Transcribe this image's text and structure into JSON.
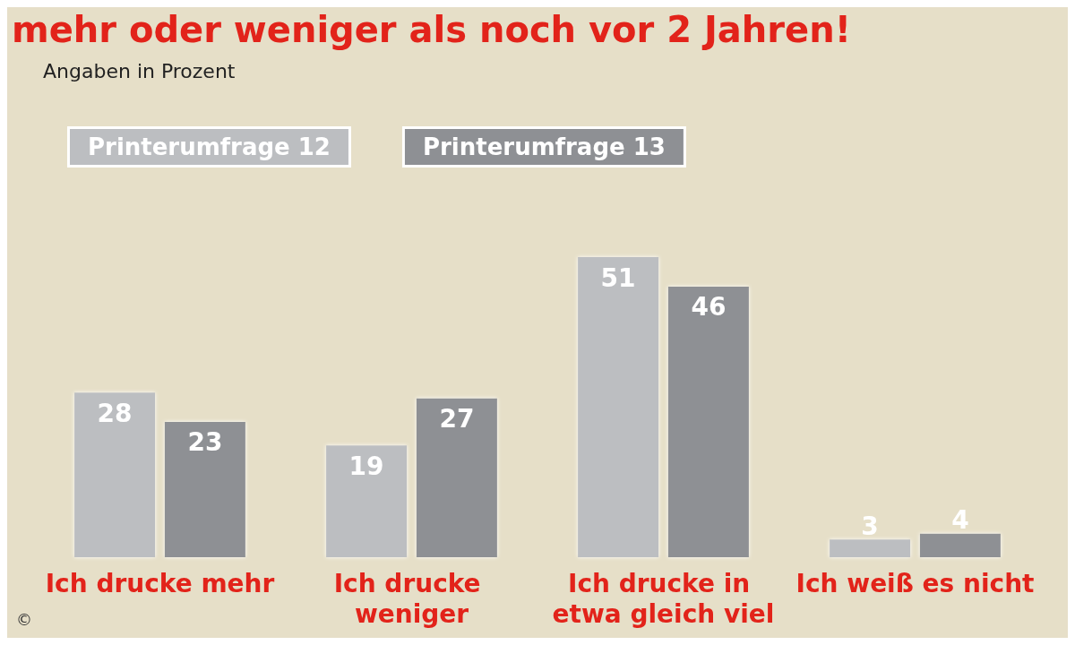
{
  "chart_data": {
    "type": "bar",
    "title": "mehr oder weniger als noch vor 2 Jahren!",
    "subtitle": "Angaben in Prozent",
    "categories": [
      "Ich drucke mehr",
      "Ich drucke weniger",
      "Ich drucke in etwa gleich viel",
      "Ich weiß es nicht"
    ],
    "series": [
      {
        "name": "Printerumfrage 12",
        "color": "#bcbec1",
        "values": [
          28,
          19,
          51,
          3
        ]
      },
      {
        "name": "Printerumfrage 13",
        "color": "#8e9094",
        "values": [
          23,
          27,
          46,
          4
        ]
      }
    ],
    "data_labels": true,
    "legend": "top left",
    "annotations": [
      "©"
    ]
  }
}
